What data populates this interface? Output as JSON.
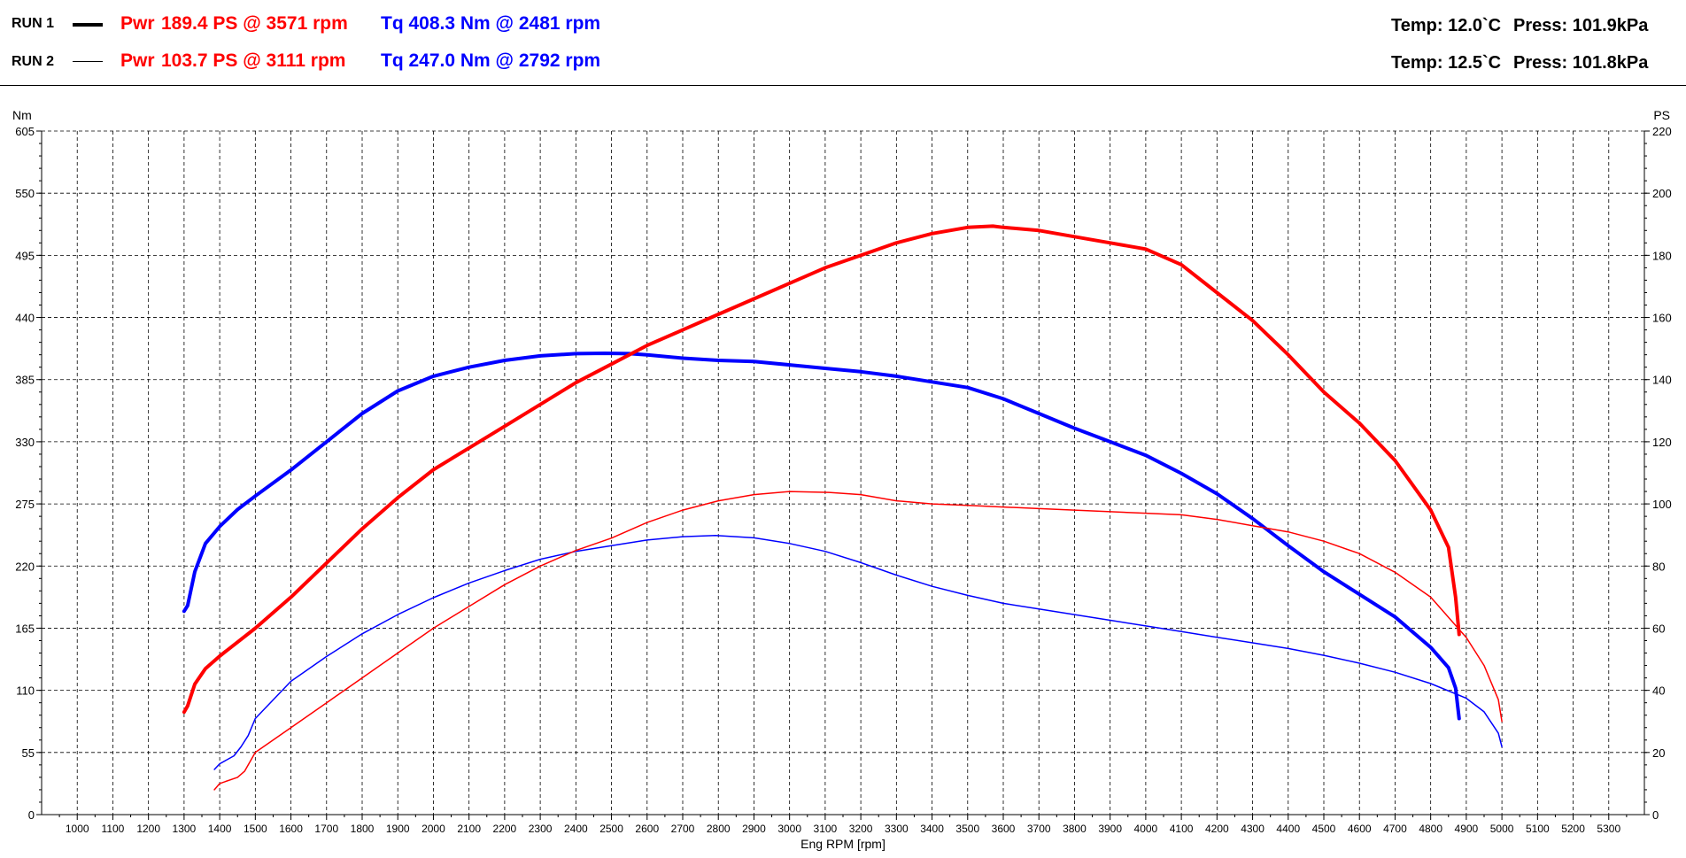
{
  "header": {
    "runs": [
      {
        "label": "RUN 1",
        "pwr_prefix": "Pwr",
        "pwr": "189.4 PS @ 3571 rpm",
        "tq": "Tq 408.3 Nm @ 2481 rpm",
        "temp": "Temp: 12.0`C",
        "press": "Press: 101.9kPa"
      },
      {
        "label": "RUN 2",
        "pwr_prefix": "Pwr",
        "pwr": "103.7 PS @ 3111 rpm",
        "tq": "Tq 247.0 Nm @ 2792 rpm",
        "temp": "Temp: 12.5`C",
        "press": "Press: 101.8kPa"
      }
    ]
  },
  "colors": {
    "power": "#ff0000",
    "torque": "#0000ff",
    "grid": "#000000"
  },
  "chart_data": {
    "type": "line",
    "xlabel": "Eng RPM [rpm]",
    "ylabel_left": "Nm",
    "ylabel_right": "PS",
    "xlim": [
      900,
      5400
    ],
    "ylim_left": [
      0,
      605
    ],
    "ylim_right": [
      0,
      220
    ],
    "x_ticks": [
      1000,
      1100,
      1200,
      1300,
      1400,
      1500,
      1600,
      1700,
      1800,
      1900,
      2000,
      2100,
      2200,
      2300,
      2400,
      2500,
      2600,
      2700,
      2800,
      2900,
      3000,
      3100,
      3200,
      3300,
      3400,
      3500,
      3600,
      3700,
      3800,
      3900,
      4000,
      4100,
      4200,
      4300,
      4400,
      4500,
      4600,
      4700,
      4800,
      4900,
      5000,
      5100,
      5200,
      5300
    ],
    "y_ticks_left": [
      0,
      55,
      110,
      165,
      220,
      275,
      330,
      385,
      440,
      495,
      550,
      605
    ],
    "y_ticks_right": [
      0,
      20,
      40,
      60,
      80,
      100,
      120,
      140,
      160,
      180,
      200,
      220
    ],
    "grid": true,
    "series": [
      {
        "name": "RUN 1",
        "quantity": "Tq",
        "axis": "left",
        "color": "#0000ff",
        "width": 4,
        "x": [
          1300,
          1310,
          1330,
          1360,
          1400,
          1450,
          1500,
          1600,
          1700,
          1800,
          1900,
          2000,
          2100,
          2200,
          2300,
          2400,
          2481,
          2550,
          2600,
          2700,
          2800,
          2900,
          3000,
          3100,
          3200,
          3300,
          3400,
          3500,
          3600,
          3700,
          3800,
          3900,
          4000,
          4100,
          4200,
          4300,
          4400,
          4500,
          4600,
          4700,
          4800,
          4850,
          4870,
          4880
        ],
        "y": [
          180,
          185,
          215,
          240,
          255,
          270,
          282,
          305,
          330,
          355,
          375,
          388,
          396,
          402,
          406,
          408,
          408.3,
          408,
          407,
          404,
          402,
          401,
          398,
          395,
          392,
          388,
          383,
          378,
          368,
          355,
          342,
          330,
          318,
          302,
          284,
          262,
          238,
          215,
          195,
          175,
          148,
          130,
          112,
          85
        ]
      },
      {
        "name": "RUN 1",
        "quantity": "Pwr",
        "axis": "right",
        "color": "#ff0000",
        "width": 4,
        "x": [
          1300,
          1310,
          1330,
          1360,
          1400,
          1500,
          1600,
          1700,
          1800,
          1900,
          2000,
          2100,
          2200,
          2300,
          2400,
          2500,
          2600,
          2700,
          2800,
          2900,
          3000,
          3100,
          3200,
          3300,
          3400,
          3500,
          3571,
          3600,
          3700,
          3800,
          3900,
          4000,
          4100,
          4200,
          4300,
          4400,
          4500,
          4600,
          4700,
          4800,
          4850,
          4870,
          4880
        ],
        "y": [
          33,
          35,
          42,
          47,
          51,
          60,
          70,
          81,
          92,
          102,
          111,
          118,
          125,
          132,
          139,
          145,
          151,
          156,
          161,
          166,
          171,
          176,
          180,
          184,
          187,
          189,
          189.4,
          189,
          188,
          186,
          184,
          182,
          177,
          168,
          159,
          148,
          136,
          126,
          114,
          98,
          86,
          70,
          58
        ]
      },
      {
        "name": "RUN 2",
        "quantity": "Tq",
        "axis": "left",
        "color": "#0000ff",
        "width": 1.5,
        "x": [
          1385,
          1400,
          1440,
          1460,
          1480,
          1500,
          1600,
          1700,
          1800,
          1900,
          2000,
          2100,
          2200,
          2300,
          2400,
          2500,
          2600,
          2700,
          2792,
          2900,
          3000,
          3100,
          3200,
          3300,
          3400,
          3500,
          3600,
          3700,
          3800,
          3900,
          4000,
          4100,
          4200,
          4300,
          4400,
          4500,
          4600,
          4700,
          4800,
          4900,
          4950,
          4990,
          5000
        ],
        "y": [
          40,
          45,
          52,
          60,
          70,
          85,
          118,
          140,
          160,
          177,
          192,
          205,
          216,
          226,
          233,
          238,
          243,
          246,
          247,
          245,
          240,
          233,
          223,
          212,
          202,
          194,
          187,
          182,
          177,
          172,
          167,
          162,
          157,
          152,
          147,
          141,
          134,
          126,
          116,
          103,
          91,
          72,
          60
        ]
      },
      {
        "name": "RUN 2",
        "quantity": "Pwr",
        "axis": "right",
        "color": "#ff0000",
        "width": 1.5,
        "x": [
          1385,
          1400,
          1450,
          1470,
          1500,
          1600,
          1700,
          1800,
          1900,
          2000,
          2100,
          2200,
          2300,
          2400,
          2500,
          2600,
          2700,
          2800,
          2900,
          3000,
          3111,
          3200,
          3300,
          3400,
          3500,
          3600,
          3700,
          3800,
          3900,
          4000,
          4100,
          4200,
          4300,
          4400,
          4500,
          4600,
          4700,
          4800,
          4900,
          4950,
          4990,
          5000
        ],
        "y": [
          8,
          10,
          12,
          14,
          20,
          28,
          36,
          44,
          52,
          60,
          67,
          74,
          80,
          85,
          89,
          94,
          98,
          101,
          103,
          104,
          103.7,
          103,
          101,
          100,
          99.5,
          99,
          98.5,
          98,
          97.5,
          97,
          96.5,
          95,
          93,
          91,
          88,
          84,
          78,
          70,
          57,
          48,
          37,
          30
        ]
      }
    ]
  }
}
